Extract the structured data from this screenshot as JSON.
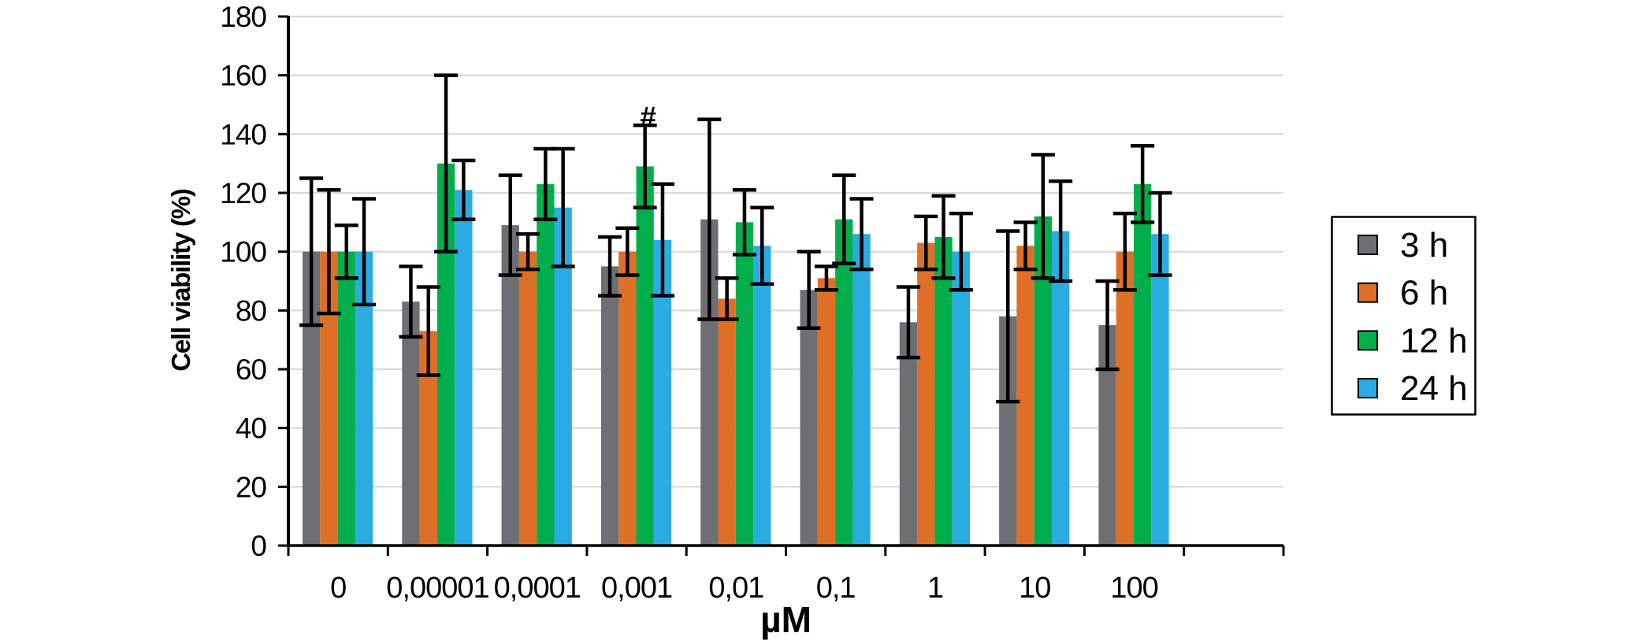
{
  "chart_data": {
    "type": "bar",
    "title": "",
    "xlabel": "µM",
    "ylabel": "Cell viability (%)",
    "ylim": [
      0,
      180
    ],
    "ytick_step": 20,
    "yticks": [
      0,
      20,
      40,
      60,
      80,
      100,
      120,
      140,
      160,
      180
    ],
    "grid": true,
    "grid_color": "#d9d9d9",
    "axis_color": "#000000",
    "background": "#ffffff",
    "legend_position": "right",
    "categories": [
      "0",
      "0,00001",
      "0,0001",
      "0,001",
      "0,01",
      "0,1",
      "1",
      "10",
      "100"
    ],
    "series": [
      {
        "name": "3 h",
        "color": "#6e6f72",
        "values": [
          100,
          83,
          109,
          95,
          111,
          87,
          76,
          78,
          75
        ],
        "errors": [
          25,
          12,
          17,
          10,
          34,
          13,
          12,
          29,
          15
        ]
      },
      {
        "name": "6 h",
        "color": "#df6e26",
        "values": [
          100,
          73,
          100,
          100,
          84,
          91,
          103,
          102,
          100
        ],
        "errors": [
          21,
          15,
          6,
          8,
          7,
          4,
          9,
          8,
          13
        ]
      },
      {
        "name": "12 h",
        "color": "#00ae4c",
        "values": [
          100,
          130,
          123,
          129,
          110,
          111,
          105,
          112,
          123
        ],
        "errors": [
          9,
          30,
          12,
          14,
          11,
          15,
          14,
          21,
          13
        ]
      },
      {
        "name": "24 h",
        "color": "#2aace2",
        "values": [
          100,
          121,
          115,
          104,
          102,
          106,
          100,
          107,
          106
        ],
        "errors": [
          18,
          10,
          20,
          19,
          13,
          12,
          13,
          17,
          14
        ]
      }
    ],
    "annotations": [
      {
        "text": "#",
        "category": "0,001",
        "series": "12 h"
      }
    ]
  }
}
